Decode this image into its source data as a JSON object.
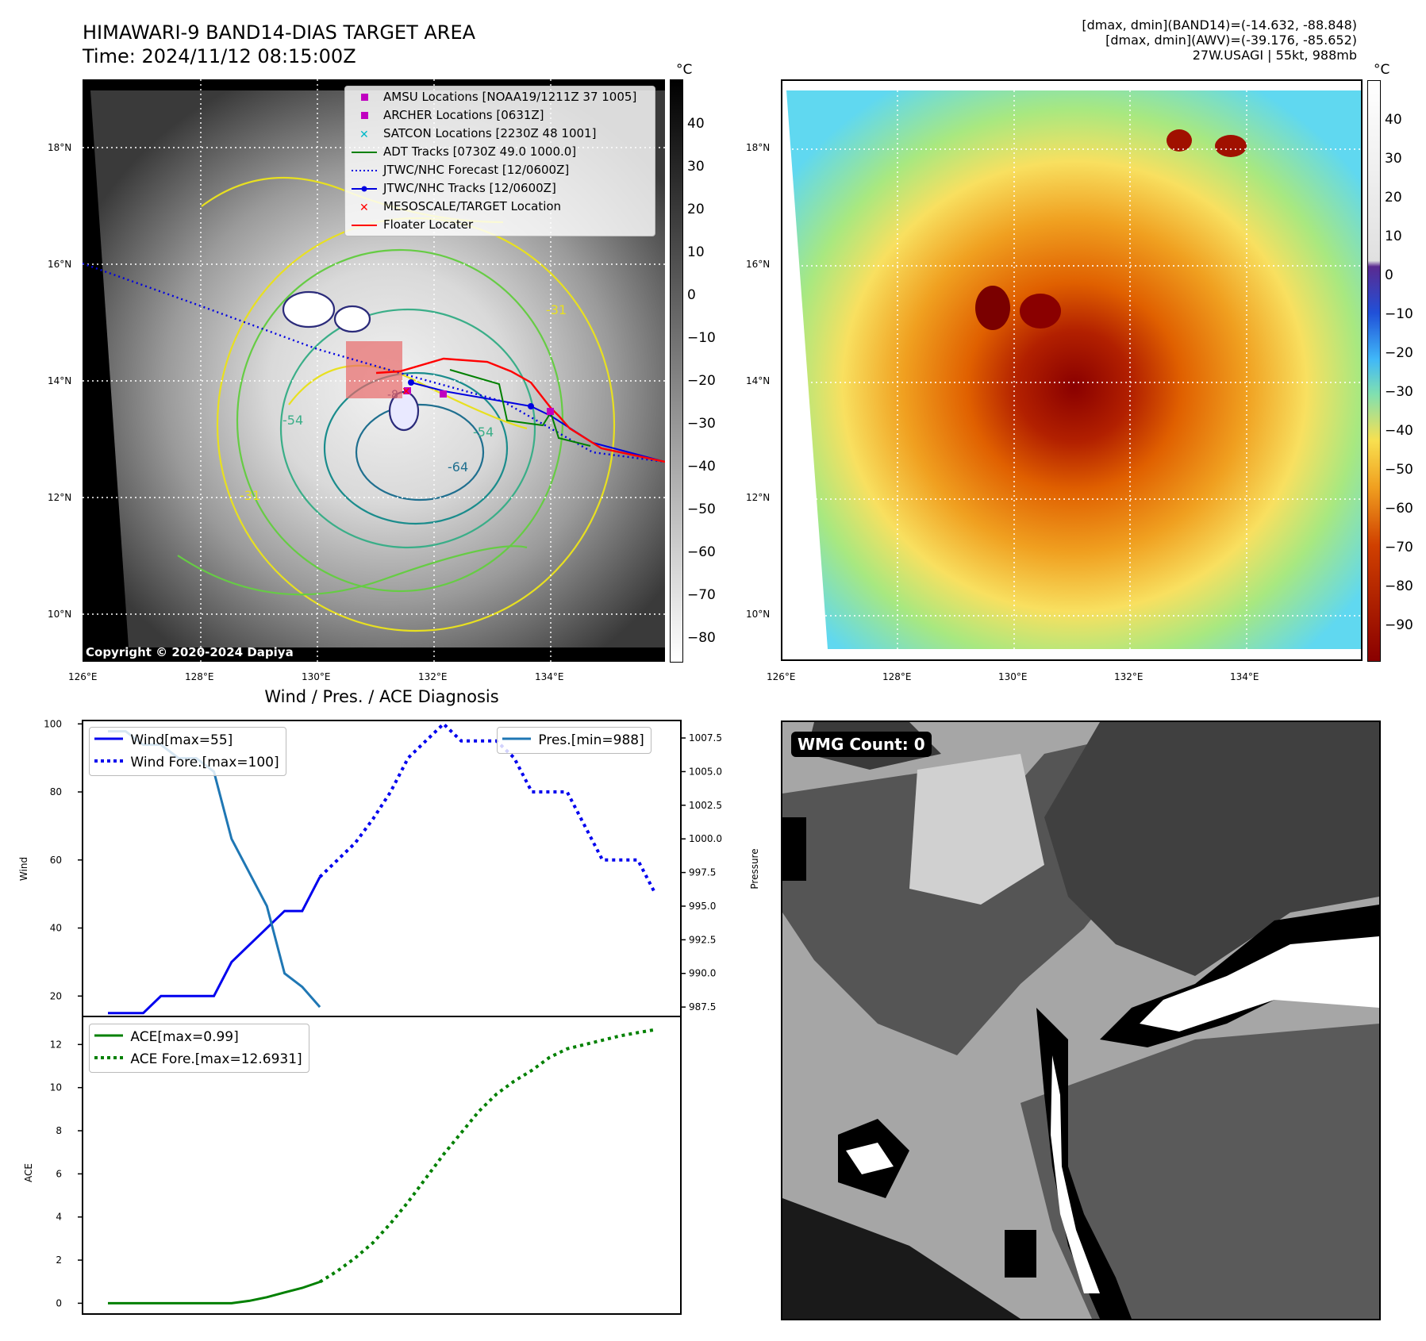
{
  "header": {
    "title_line1": "HIMAWARI-9 BAND14-DIAS TARGET AREA",
    "title_line2": "Time: 2024/11/12 08:15:00Z",
    "info_line1": "[dmax, dmin](BAND14)=(-14.632, -88.848)",
    "info_line2": "[dmax, dmin](AWV)=(-39.176, -85.652)",
    "info_line3": "27W.USAGI | 55kt, 988mb"
  },
  "map": {
    "lat_labels": [
      "18°N",
      "16°N",
      "14°N",
      "12°N",
      "10°N"
    ],
    "lon_labels": [
      "126°E",
      "128°E",
      "130°E",
      "132°E",
      "134°E"
    ],
    "copyright": "Copyright © 2020-2024 Dapiya",
    "contour_labels": [
      "-31",
      "-31",
      "-54",
      "-54",
      "-64",
      "-8"
    ],
    "legend": [
      {
        "label": "AMSU Locations [NOAA19/1211Z 37 1005]",
        "color": "#c000c0",
        "symbol": "square"
      },
      {
        "label": "ARCHER Locations [0631Z]",
        "color": "#c000c0",
        "symbol": "square"
      },
      {
        "label": "SATCON Locations [2230Z 48 1001]",
        "color": "#00b8c8",
        "symbol": "x"
      },
      {
        "label": "ADT Tracks [0730Z 49.0 1000.0]",
        "color": "#008000",
        "symbol": "line"
      },
      {
        "label": "JTWC/NHC Forecast [12/0600Z]",
        "color": "#0000e0",
        "symbol": "dotted"
      },
      {
        "label": "JTWC/NHC Tracks [12/0600Z]",
        "color": "#0000e0",
        "symbol": "line-dot"
      },
      {
        "label": "MESOSCALE/TARGET Location",
        "color": "#ff0000",
        "symbol": "x"
      },
      {
        "label": "Floater Locater",
        "color": "#ff0000",
        "symbol": "line"
      }
    ]
  },
  "colorbars": {
    "unit": "°C",
    "gray_ticks": [
      "40",
      "30",
      "20",
      "10",
      "0",
      "−10",
      "−20",
      "−30",
      "−40",
      "−50",
      "−60",
      "−70",
      "−80"
    ],
    "color_ticks": [
      "40",
      "30",
      "20",
      "10",
      "0",
      "−10",
      "−20",
      "−30",
      "−40",
      "−50",
      "−60",
      "−70",
      "−80",
      "−90"
    ]
  },
  "wmg": {
    "label": "WMG Count: 0"
  },
  "chart_data": [
    {
      "type": "line",
      "title": "Wind / Pres. / ACE Diagnosis",
      "ylabel": "Wind",
      "y2label": "Pressure",
      "ylim": [
        14,
        101
      ],
      "y2lim": [
        986.8,
        1008.8
      ],
      "yticks": [
        20,
        40,
        60,
        80,
        100
      ],
      "y2ticks": [
        "987.5",
        "990.0",
        "992.5",
        "995.0",
        "997.5",
        "1000.0",
        "1002.5",
        "1005.0",
        "1007.5"
      ],
      "series": [
        {
          "name": "Wind[max=55]",
          "color": "#0000ee",
          "style": "solid",
          "axis": "left",
          "values": [
            [
              0,
              15
            ],
            [
              1,
              15
            ],
            [
              2,
              15
            ],
            [
              3,
              20
            ],
            [
              4,
              20
            ],
            [
              5,
              20
            ],
            [
              6,
              20
            ],
            [
              7,
              30
            ],
            [
              8,
              35
            ],
            [
              9,
              40
            ],
            [
              10,
              45
            ],
            [
              11,
              45
            ],
            [
              12,
              55
            ]
          ]
        },
        {
          "name": "Wind Fore.[max=100]",
          "color": "#0000ee",
          "style": "dotted",
          "axis": "left",
          "values": [
            [
              12,
              55
            ],
            [
              13,
              60
            ],
            [
              14,
              65
            ],
            [
              15,
              72
            ],
            [
              16,
              80
            ],
            [
              17,
              90
            ],
            [
              18,
              95
            ],
            [
              19,
              100
            ],
            [
              20,
              95
            ],
            [
              21,
              95
            ],
            [
              22,
              95
            ],
            [
              23,
              90
            ],
            [
              24,
              80
            ],
            [
              25,
              80
            ],
            [
              26,
              80
            ],
            [
              27,
              70
            ],
            [
              28,
              60
            ],
            [
              29,
              60
            ],
            [
              30,
              60
            ],
            [
              31,
              50
            ]
          ]
        },
        {
          "name": "Pres.[min=988]",
          "color": "#1f77b4",
          "style": "solid",
          "axis": "right",
          "values": [
            [
              0,
              1008
            ],
            [
              1,
              1008
            ],
            [
              2,
              1007
            ],
            [
              3,
              1007
            ],
            [
              4,
              1006
            ],
            [
              5,
              1006
            ],
            [
              6,
              1005
            ],
            [
              7,
              1000
            ],
            [
              8,
              997.5
            ],
            [
              9,
              995
            ],
            [
              10,
              990
            ],
            [
              11,
              989
            ],
            [
              12,
              987.5
            ]
          ]
        }
      ]
    },
    {
      "type": "line",
      "ylabel": "ACE",
      "ylim": [
        -0.5,
        13.3
      ],
      "yticks": [
        0,
        2,
        4,
        6,
        8,
        10,
        12
      ],
      "series": [
        {
          "name": "ACE[max=0.99]",
          "color": "#008000",
          "style": "solid",
          "values": [
            [
              0,
              0
            ],
            [
              1,
              0
            ],
            [
              2,
              0
            ],
            [
              3,
              0
            ],
            [
              4,
              0
            ],
            [
              5,
              0
            ],
            [
              6,
              0
            ],
            [
              7,
              0
            ],
            [
              8,
              0.11
            ],
            [
              9,
              0.28
            ],
            [
              10,
              0.5
            ],
            [
              11,
              0.71
            ],
            [
              12,
              0.99
            ]
          ]
        },
        {
          "name": "ACE Fore.[max=12.6931]",
          "color": "#008000",
          "style": "dotted",
          "values": [
            [
              12,
              0.99
            ],
            [
              13,
              1.5
            ],
            [
              14,
              2.1
            ],
            [
              15,
              2.8
            ],
            [
              16,
              3.7
            ],
            [
              17,
              4.7
            ],
            [
              18,
              5.8
            ],
            [
              19,
              6.9
            ],
            [
              20,
              7.9
            ],
            [
              21,
              8.9
            ],
            [
              22,
              9.7
            ],
            [
              23,
              10.3
            ],
            [
              24,
              10.8
            ],
            [
              25,
              11.4
            ],
            [
              26,
              11.8
            ],
            [
              27,
              12.0
            ],
            [
              28,
              12.2
            ],
            [
              29,
              12.4
            ],
            [
              30,
              12.55
            ],
            [
              31,
              12.69
            ]
          ]
        }
      ]
    }
  ]
}
